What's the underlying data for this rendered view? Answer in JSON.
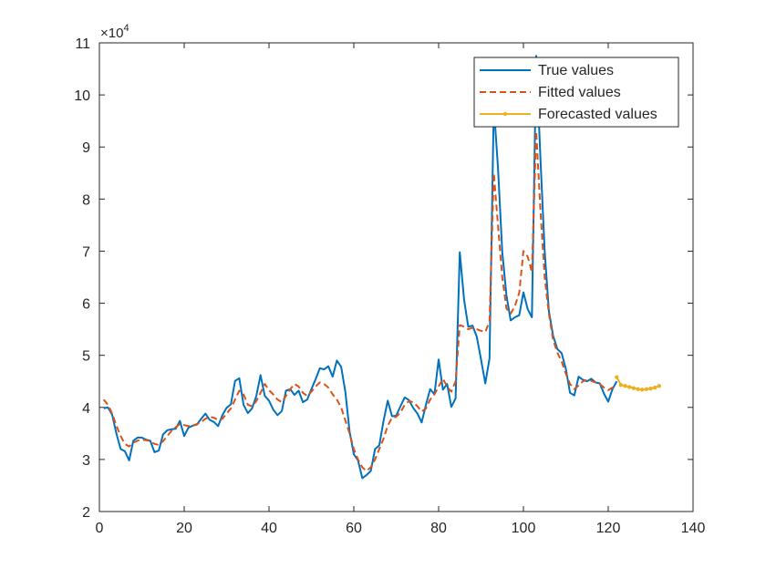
{
  "chart_data": {
    "type": "line",
    "title": "",
    "xlabel": "",
    "ylabel": "",
    "xlim": [
      0,
      140
    ],
    "ylim": [
      20000,
      110000
    ],
    "x_ticks": [
      0,
      20,
      40,
      60,
      80,
      100,
      120,
      140
    ],
    "y_ticks": [
      2,
      3,
      4,
      5,
      6,
      7,
      8,
      9,
      10,
      11
    ],
    "y_exponent_label": "×10",
    "y_exponent_power": "4",
    "grid": false,
    "legend_position": "top-right",
    "series": [
      {
        "name": "True values",
        "color": "#0072BD",
        "style": "solid",
        "x": [
          1,
          2,
          3,
          4,
          5,
          6,
          7,
          8,
          9,
          10,
          11,
          12,
          13,
          14,
          15,
          16,
          17,
          18,
          19,
          20,
          21,
          22,
          23,
          24,
          25,
          26,
          27,
          28,
          29,
          30,
          31,
          32,
          33,
          34,
          35,
          36,
          37,
          38,
          39,
          40,
          41,
          42,
          43,
          44,
          45,
          46,
          47,
          48,
          49,
          50,
          51,
          52,
          53,
          54,
          55,
          56,
          57,
          58,
          59,
          60,
          61,
          62,
          63,
          64,
          65,
          66,
          67,
          68,
          69,
          70,
          71,
          72,
          73,
          74,
          75,
          76,
          77,
          78,
          79,
          80,
          81,
          82,
          83,
          84,
          85,
          86,
          87,
          88,
          89,
          90,
          91,
          92,
          93,
          94,
          95,
          96,
          97,
          98,
          99,
          100,
          101,
          102,
          103,
          104,
          105,
          106,
          107,
          108,
          109,
          110,
          111,
          112,
          113,
          114,
          115,
          116,
          117,
          118,
          119,
          120,
          121,
          122
        ],
        "y": [
          39800,
          40000,
          38600,
          35000,
          32000,
          31600,
          29800,
          33600,
          34200,
          34200,
          33800,
          33600,
          31400,
          31700,
          34800,
          35600,
          35800,
          35900,
          37400,
          34500,
          36100,
          36500,
          36700,
          37800,
          38800,
          37600,
          37200,
          36400,
          38500,
          39900,
          40600,
          45100,
          45600,
          40500,
          38900,
          39800,
          42200,
          46200,
          42200,
          41300,
          39600,
          38500,
          39300,
          43200,
          43500,
          42400,
          43200,
          41000,
          41500,
          43500,
          45400,
          47500,
          47300,
          47900,
          45900,
          49000,
          47800,
          43000,
          35300,
          31000,
          29800,
          26400,
          27000,
          27800,
          32000,
          32700,
          37400,
          41300,
          38300,
          38400,
          40200,
          41900,
          41400,
          39900,
          38800,
          37100,
          40500,
          43500,
          42500,
          49200,
          43400,
          44500,
          40100,
          41700,
          69800,
          60700,
          55500,
          55700,
          53600,
          49200,
          44600,
          49400,
          98000,
          86000,
          69800,
          61500,
          56700,
          57300,
          57700,
          62100,
          58900,
          57300,
          107500,
          88000,
          70000,
          58500,
          53800,
          51200,
          50400,
          47400,
          42800,
          42300,
          45900,
          45300,
          45000,
          45500,
          44800,
          44600,
          42600,
          41100,
          43500,
          45000
        ]
      },
      {
        "name": "Fitted values",
        "color": "#D95319",
        "style": "dashed",
        "x": [
          1,
          2,
          3,
          4,
          5,
          6,
          7,
          8,
          9,
          10,
          11,
          12,
          13,
          14,
          15,
          16,
          17,
          18,
          19,
          20,
          21,
          22,
          23,
          24,
          25,
          26,
          27,
          28,
          29,
          30,
          31,
          32,
          33,
          34,
          35,
          36,
          37,
          38,
          39,
          40,
          41,
          42,
          43,
          44,
          45,
          46,
          47,
          48,
          49,
          50,
          51,
          52,
          53,
          54,
          55,
          56,
          57,
          58,
          59,
          60,
          61,
          62,
          63,
          64,
          65,
          66,
          67,
          68,
          69,
          70,
          71,
          72,
          73,
          74,
          75,
          76,
          77,
          78,
          79,
          80,
          81,
          82,
          83,
          84,
          85,
          86,
          87,
          88,
          89,
          90,
          91,
          92,
          93,
          94,
          95,
          96,
          97,
          98,
          99,
          100,
          101,
          102,
          103,
          104,
          105,
          106,
          107,
          108,
          109,
          110,
          111,
          112,
          113,
          114,
          115,
          116,
          117,
          118,
          119,
          120,
          121,
          122
        ],
        "y": [
          41500,
          40500,
          38800,
          36500,
          34500,
          33000,
          32500,
          33200,
          33600,
          33800,
          33700,
          33500,
          33000,
          32800,
          33500,
          34500,
          35500,
          36200,
          36800,
          36600,
          36400,
          36500,
          36800,
          37200,
          37800,
          38200,
          38000,
          37600,
          37800,
          38800,
          39800,
          41500,
          43200,
          42500,
          40500,
          40200,
          41200,
          42800,
          44500,
          43300,
          42500,
          41500,
          41000,
          42200,
          43500,
          44500,
          44000,
          42800,
          42200,
          43000,
          44000,
          44800,
          44500,
          43800,
          42500,
          41500,
          40000,
          37500,
          35000,
          32000,
          30000,
          28500,
          27800,
          28500,
          30000,
          32000,
          34000,
          36500,
          38000,
          38200,
          39000,
          40500,
          41200,
          41000,
          40200,
          39200,
          39800,
          41500,
          42500,
          44000,
          45500,
          44000,
          43000,
          45000,
          55800,
          55500,
          55000,
          55300,
          55000,
          54700,
          54500,
          56500,
          85000,
          75000,
          65000,
          59000,
          58000,
          59500,
          62000,
          70000,
          69000,
          66000,
          93000,
          78000,
          65000,
          58000,
          53000,
          50500,
          48800,
          46500,
          44500,
          43500,
          44200,
          45000,
          45300,
          45100,
          44800,
          44500,
          43800,
          43300,
          43800,
          44000
        ]
      },
      {
        "name": "Forecasted values",
        "color": "#EDB120",
        "style": "solid-dots",
        "x": [
          122,
          123,
          124,
          125,
          126,
          127,
          128,
          129,
          130,
          131,
          132
        ],
        "y": [
          45800,
          44300,
          44100,
          43900,
          43700,
          43500,
          43400,
          43500,
          43600,
          43800,
          44100
        ]
      }
    ]
  }
}
